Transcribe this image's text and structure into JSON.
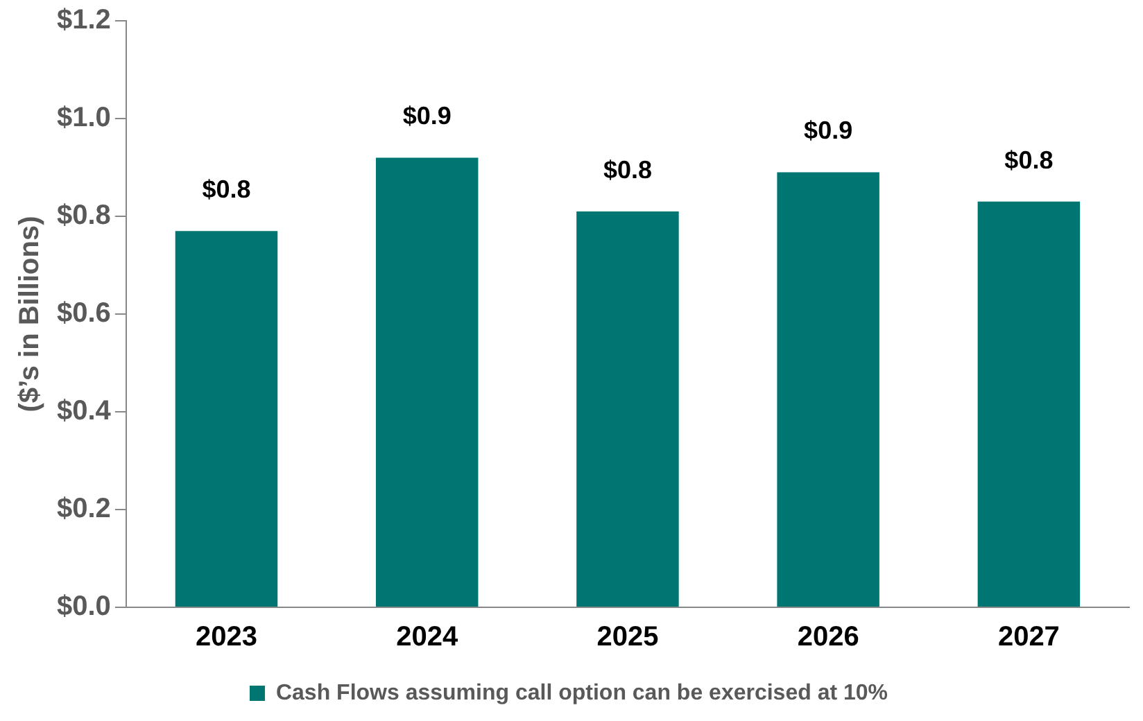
{
  "chart_data": {
    "type": "bar",
    "ylabel": "($’s in Billions)",
    "categories": [
      "2023",
      "2024",
      "2025",
      "2026",
      "2027"
    ],
    "series": [
      {
        "name": "Cash Flows assuming call option can be exercised at 10%",
        "color": "#007672",
        "values": [
          0.77,
          0.92,
          0.81,
          0.89,
          0.83
        ],
        "value_labels": [
          "$0.8",
          "$0.9",
          "$0.8",
          "$0.9",
          "$0.8"
        ]
      }
    ],
    "ylim": [
      0,
      1.2
    ],
    "yticks": [
      {
        "value": 0,
        "label": "$0.0"
      },
      {
        "value": 0.2,
        "label": "$0.2"
      },
      {
        "value": 0.4,
        "label": "$0.4"
      },
      {
        "value": 0.6,
        "label": "$0.6"
      },
      {
        "value": 0.8,
        "label": "$0.8"
      },
      {
        "value": 1,
        "label": "$1.0"
      },
      {
        "value": 1.2,
        "label": "$1.2"
      }
    ],
    "grid": false,
    "legend": "bottom"
  }
}
